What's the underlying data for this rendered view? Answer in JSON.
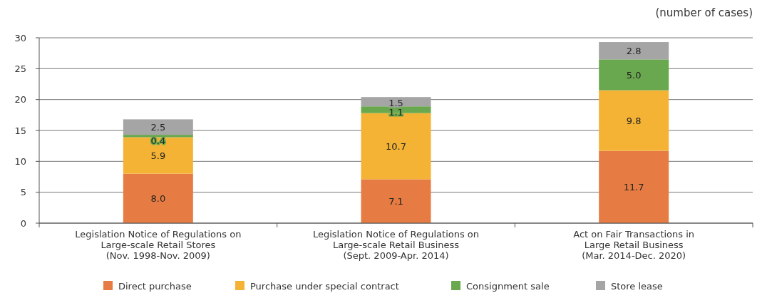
{
  "chart_data": {
    "type": "bar",
    "stacked": true,
    "ylabel": "(number of cases)",
    "categories": [
      "Legislation Notice of Regulations on\nLarge-scale Retail Stores\n(Nov. 1998-Nov. 2009)",
      "Legislation Notice of Regulations on\nLarge-scale Retail Business\n(Sept. 2009-Apr. 2014)",
      "Act on Fair Transactions in\nLarge Retail Business\n(Mar. 2014-Dec. 2020)"
    ],
    "series": [
      {
        "name": "Direct purchase",
        "color": "#e67c43",
        "values": [
          8.0,
          7.1,
          11.7
        ],
        "value_labels": [
          "8.0",
          "7.1",
          "11.7"
        ]
      },
      {
        "name": "Purchase under special contract",
        "color": "#f4b335",
        "values": [
          5.9,
          10.7,
          9.8
        ],
        "value_labels": [
          "5.9",
          "10.7",
          "9.8"
        ]
      },
      {
        "name": "Consignment sale",
        "color": "#6aa84f",
        "values": [
          0.4,
          1.1,
          5.0
        ],
        "value_labels": [
          "0.4",
          "1.1",
          "5.0"
        ]
      },
      {
        "name": "Store lease",
        "color": "#a5a5a5",
        "values": [
          2.5,
          1.5,
          2.8
        ],
        "value_labels": [
          "2.5",
          "1.5",
          "2.8"
        ]
      }
    ],
    "ylim": [
      0,
      30
    ],
    "yticks": [
      0,
      5,
      10,
      15,
      20,
      25,
      30
    ],
    "grid": "y",
    "legend": "bottom"
  }
}
